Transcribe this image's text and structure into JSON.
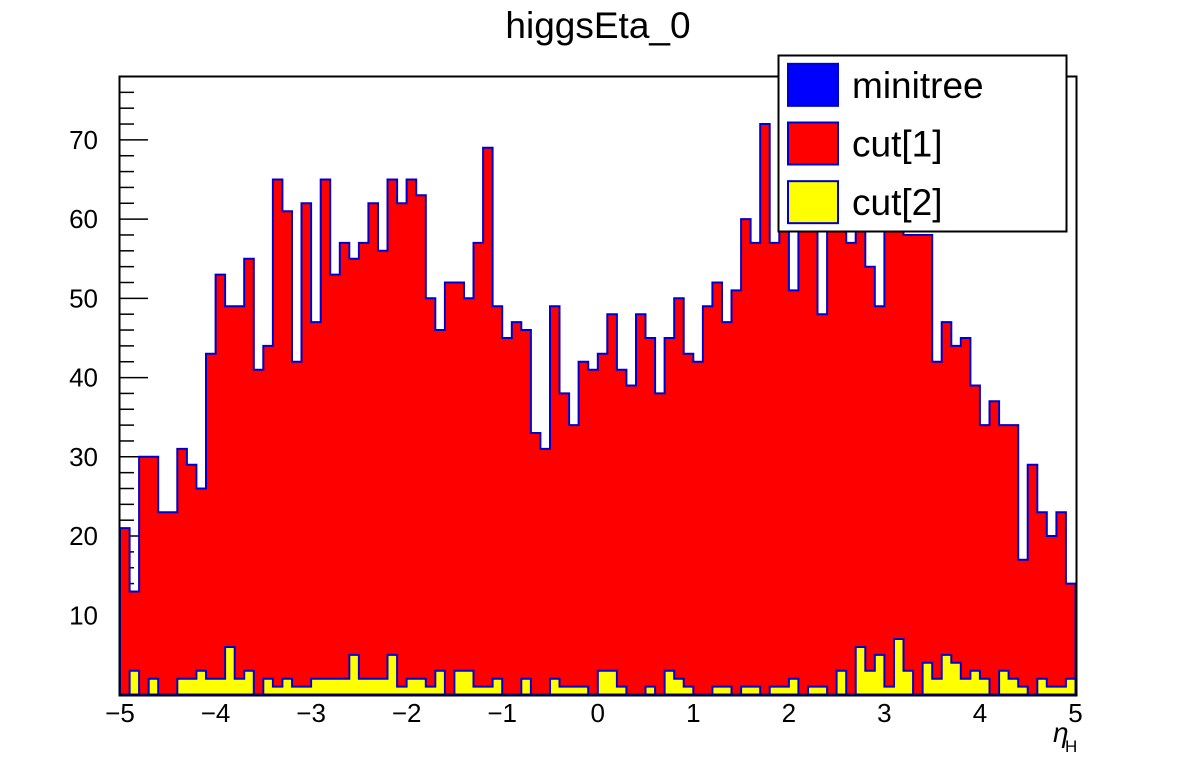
{
  "chart_data": {
    "type": "bar",
    "title": "higgsEta_0",
    "x_axis": {
      "label_symbol": "η",
      "label_subscript": "H",
      "min": -5,
      "max": 5,
      "tick_values": [
        -5,
        -4,
        -3,
        -2,
        -1,
        0,
        1,
        2,
        3,
        4,
        5
      ],
      "tick_labels": [
        "−5",
        "−4",
        "−3",
        "−2",
        "−1",
        "0",
        "1",
        "2",
        "3",
        "4",
        "5"
      ]
    },
    "y_axis": {
      "min": 0,
      "max": 78,
      "tick_values": [
        10,
        20,
        30,
        40,
        50,
        60,
        70
      ],
      "minor_tick_step": 2
    },
    "bins": 100,
    "bin_width": 0.1,
    "grid": false,
    "legend": {
      "position": "top-right",
      "entries": [
        {
          "label": "minitree",
          "fill": "#0000ff",
          "border": "#0000cc"
        },
        {
          "label": "cut[1]",
          "fill": "#ff0000",
          "border": "#0000cc"
        },
        {
          "label": "cut[2]",
          "fill": "#ffff00",
          "border": "#0000cc"
        }
      ]
    },
    "series": [
      {
        "name": "cut[1]",
        "fill": "#ff0000",
        "line": "#0000cc",
        "values": [
          21,
          13,
          30,
          30,
          23,
          23,
          31,
          29,
          26,
          43,
          53,
          49,
          49,
          55,
          41,
          44,
          65,
          61,
          42,
          62,
          47,
          65,
          53,
          57,
          55,
          57,
          62,
          56,
          65,
          62,
          65,
          63,
          50,
          46,
          52,
          52,
          50,
          57,
          69,
          49,
          45,
          47,
          46,
          33,
          31,
          49,
          38,
          34,
          42,
          41,
          43,
          48,
          41,
          39,
          48,
          45,
          38,
          45,
          50,
          43,
          42,
          49,
          52,
          47,
          51,
          60,
          57,
          72,
          57,
          60,
          51,
          62,
          60,
          48,
          60,
          62,
          57,
          60,
          54,
          49,
          61,
          59,
          58,
          58,
          58,
          42,
          47,
          44,
          45,
          39,
          34,
          37,
          34,
          34,
          17,
          29,
          23,
          20,
          23,
          14
        ]
      },
      {
        "name": "cut[2]",
        "fill": "#ffff00",
        "line": "#0000cc",
        "values": [
          0,
          3,
          0,
          2,
          0,
          0,
          2,
          2,
          3,
          2,
          2,
          6,
          2,
          3,
          0,
          2,
          1,
          2,
          1,
          1,
          2,
          2,
          2,
          2,
          5,
          2,
          2,
          2,
          5,
          1,
          2,
          2,
          1,
          3,
          0,
          3,
          3,
          1,
          1,
          2,
          0,
          0,
          2,
          0,
          0,
          2,
          1,
          1,
          1,
          0,
          3,
          3,
          1,
          0,
          0,
          1,
          0,
          3,
          2,
          1,
          0,
          0,
          1,
          1,
          0,
          1,
          1,
          0,
          1,
          1,
          2,
          0,
          1,
          1,
          0,
          3,
          0,
          6,
          3,
          5,
          1,
          7,
          3,
          0,
          4,
          2,
          5,
          4,
          2,
          3,
          2,
          0,
          3,
          2,
          1,
          0,
          2,
          1,
          1,
          2
        ]
      }
    ],
    "colors": {
      "frame": "#000000",
      "text": "#000000",
      "background": "#ffffff"
    }
  }
}
